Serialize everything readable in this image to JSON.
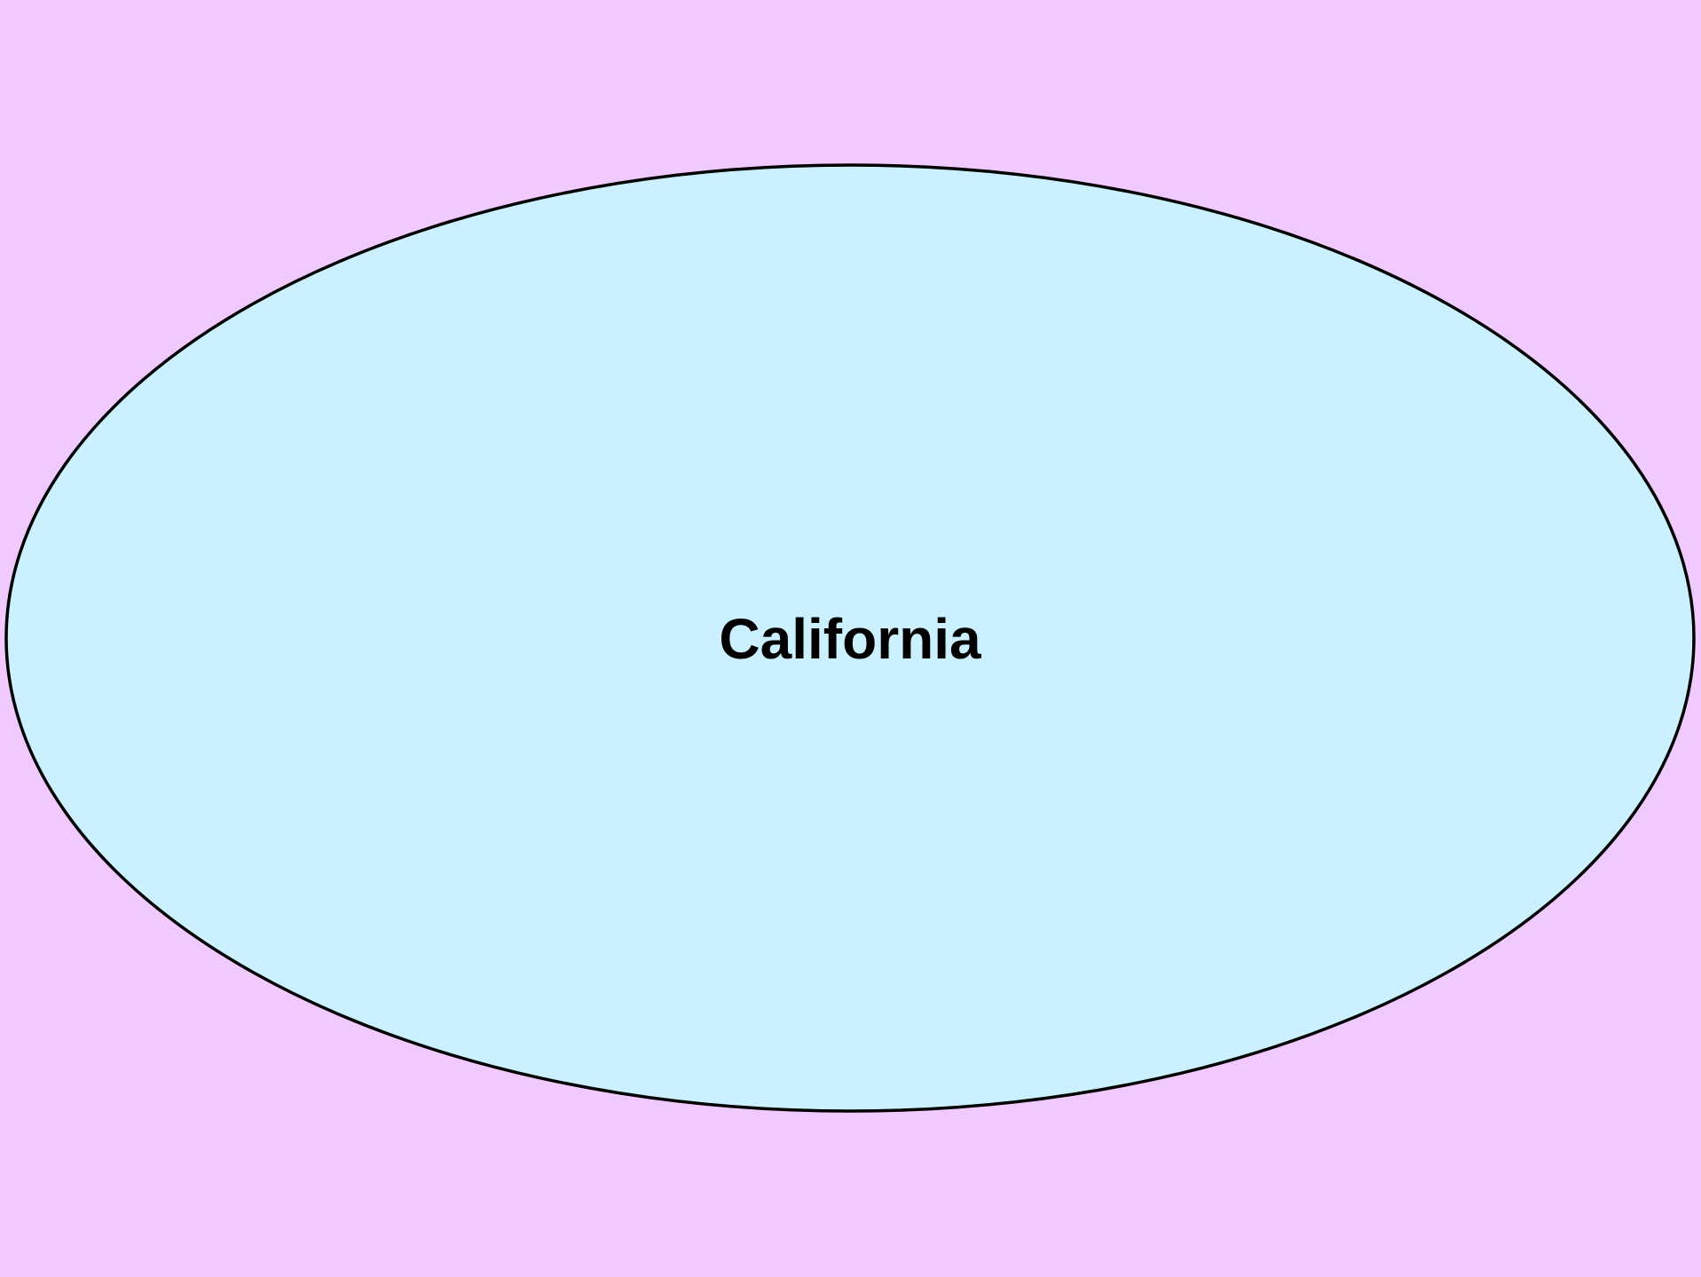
{
  "colors": {
    "background": "#f0c9ff",
    "ellipse_fill": "#cbf0ff",
    "ellipse_stroke": "#000000"
  },
  "diagram": {
    "nodes": [
      {
        "id": "california",
        "shape": "ellipse",
        "label": "California"
      }
    ]
  }
}
